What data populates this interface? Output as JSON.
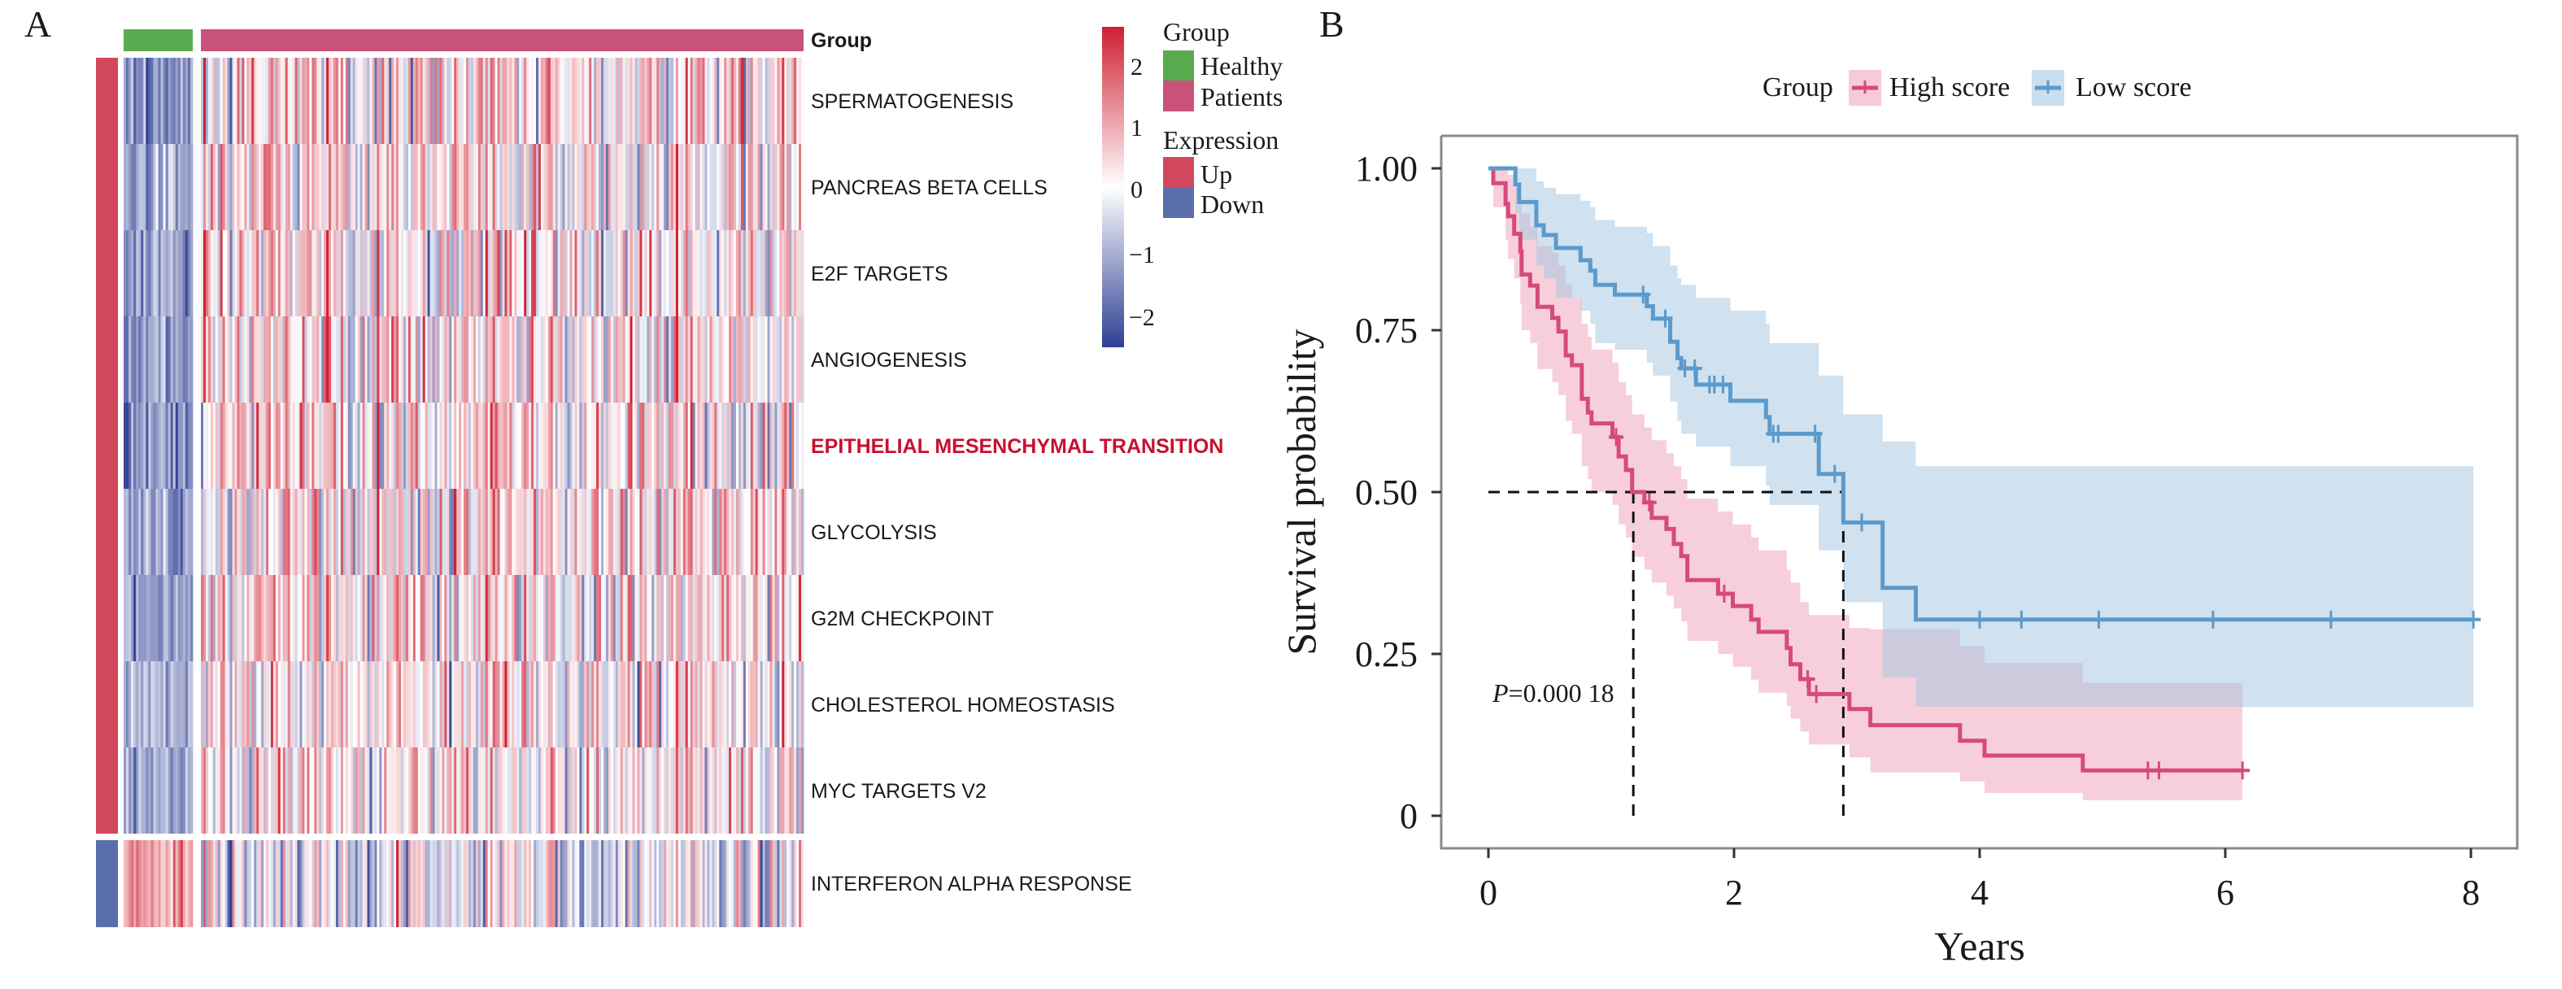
{
  "panels": {
    "a_letter": "A",
    "b_letter": "B"
  },
  "colors": {
    "healthy": "#5aaa4f",
    "patients": "#c9527a",
    "up": "#d2485c",
    "down": "#5a6eae",
    "heat_high": "#cf1f32",
    "heat_mid": "#ffffff",
    "heat_low": "#2e3f94",
    "high_line": "#d64a7a",
    "high_fill": "#f0a8bc",
    "low_line": "#5b9acb",
    "low_fill": "#a9c8e2",
    "row_highlight": "#c8102e"
  },
  "heatmap": {
    "group_annotation_label": "Group",
    "legend": {
      "group_title": "Group",
      "group_items": [
        "Healthy",
        "Patients"
      ],
      "expression_title": "Expression",
      "expression_items": [
        "Up",
        "Down"
      ]
    },
    "colorbar": {
      "ticks": [
        "2",
        "1",
        "0",
        "−1",
        "−2"
      ],
      "tick_values": [
        2,
        1,
        0,
        -1,
        -2
      ],
      "range": [
        -2.5,
        2.6
      ]
    }
  },
  "chart_data": [
    {
      "type": "heatmap",
      "title": "",
      "column_groups": [
        {
          "name": "Healthy",
          "n_columns": 28
        },
        {
          "name": "Patients",
          "n_columns": 250
        }
      ],
      "rows": [
        {
          "label": "SPERMATOGENESIS",
          "expression": "Up",
          "highlight": false,
          "healthy_mean": -1.4,
          "patients_mean": 0.35
        },
        {
          "label": "PANCREAS BETA CELLS",
          "expression": "Up",
          "highlight": false,
          "healthy_mean": -1.1,
          "patients_mean": 0.2
        },
        {
          "label": "E2F TARGETS",
          "expression": "Up",
          "highlight": false,
          "healthy_mean": -1.2,
          "patients_mean": 0.3
        },
        {
          "label": "ANGIOGENESIS",
          "expression": "Up",
          "highlight": false,
          "healthy_mean": -1.3,
          "patients_mean": 0.3
        },
        {
          "label": "EPITHELIAL MESENCHYMAL TRANSITION",
          "expression": "Up",
          "highlight": true,
          "healthy_mean": -1.4,
          "patients_mean": 0.35
        },
        {
          "label": "GLYCOLYSIS",
          "expression": "Up",
          "highlight": false,
          "healthy_mean": -1.2,
          "patients_mean": 0.3
        },
        {
          "label": "G2M CHECKPOINT",
          "expression": "Up",
          "highlight": false,
          "healthy_mean": -1.1,
          "patients_mean": 0.3
        },
        {
          "label": "CHOLESTEROL HOMEOSTASIS",
          "expression": "Up",
          "highlight": false,
          "healthy_mean": -1.0,
          "patients_mean": 0.25
        },
        {
          "label": "MYC TARGETS V2",
          "expression": "Up",
          "highlight": false,
          "healthy_mean": -1.0,
          "patients_mean": 0.2
        }
      ],
      "separate_rows": [
        {
          "label": "INTERFERON ALPHA RESPONSE",
          "expression": "Down",
          "highlight": false,
          "healthy_mean": 1.2,
          "patients_mean": -0.25
        }
      ],
      "color_scale": {
        "min": -2.5,
        "max": 2.6,
        "center": 0
      }
    },
    {
      "type": "line",
      "subtype": "kaplan-meier",
      "title": "",
      "xlabel": "Years",
      "ylabel": "Survival probability",
      "xlim": [
        -0.3,
        8.4
      ],
      "ylim": [
        -0.05,
        1.05
      ],
      "xticks": [
        0,
        2,
        4,
        6,
        8
      ],
      "xtick_labels": [
        "0",
        "2",
        "4",
        "6",
        "8"
      ],
      "yticks": [
        0,
        0.25,
        0.5,
        0.75,
        1.0
      ],
      "ytick_labels": [
        "0",
        "0.25",
        "0.50",
        "0.75",
        "1.00"
      ],
      "grid": false,
      "legend": {
        "title": "Group",
        "placement": "top",
        "entries": [
          "High score",
          "Low score"
        ]
      },
      "annotation": {
        "p_italic": "P",
        "p_rest": "=0.000 18",
        "x": 0.0,
        "y": 0.16
      },
      "median_lines": {
        "y": 0.5,
        "x_values": [
          1.18,
          2.89
        ]
      },
      "series": [
        {
          "name": "High score",
          "end_time": 6.14,
          "time": [
            0,
            0.04,
            0.14,
            0.16,
            0.21,
            0.26,
            0.27,
            0.34,
            0.4,
            0.52,
            0.57,
            0.63,
            0.68,
            0.76,
            0.81,
            0.84,
            1.01,
            1.06,
            1.12,
            1.17,
            1.27,
            1.33,
            1.45,
            1.51,
            1.57,
            1.62,
            1.87,
            1.99,
            2.14,
            2.2,
            2.43,
            2.46,
            2.54,
            2.61,
            2.94,
            3.11,
            3.84,
            4.04,
            4.84
          ],
          "surv": [
            1.0,
            0.977,
            0.945,
            0.926,
            0.899,
            0.872,
            0.836,
            0.819,
            0.786,
            0.769,
            0.748,
            0.711,
            0.696,
            0.644,
            0.623,
            0.606,
            0.585,
            0.555,
            0.534,
            0.5,
            0.484,
            0.46,
            0.443,
            0.42,
            0.401,
            0.364,
            0.343,
            0.324,
            0.303,
            0.284,
            0.259,
            0.234,
            0.211,
            0.188,
            0.165,
            0.14,
            0.116,
            0.093,
            0.07
          ],
          "lower": [
            1.0,
            0.94,
            0.89,
            0.86,
            0.83,
            0.79,
            0.75,
            0.73,
            0.69,
            0.67,
            0.65,
            0.61,
            0.59,
            0.54,
            0.52,
            0.5,
            0.48,
            0.45,
            0.43,
            0.4,
            0.38,
            0.36,
            0.34,
            0.32,
            0.3,
            0.27,
            0.25,
            0.23,
            0.21,
            0.19,
            0.17,
            0.15,
            0.13,
            0.11,
            0.09,
            0.067,
            0.053,
            0.035,
            0.024
          ],
          "upper": [
            1.0,
            1.0,
            1.0,
            0.99,
            0.97,
            0.95,
            0.93,
            0.91,
            0.88,
            0.87,
            0.85,
            0.82,
            0.8,
            0.76,
            0.74,
            0.72,
            0.7,
            0.67,
            0.65,
            0.62,
            0.6,
            0.58,
            0.56,
            0.54,
            0.52,
            0.49,
            0.47,
            0.45,
            0.43,
            0.41,
            0.38,
            0.36,
            0.33,
            0.31,
            0.29,
            0.288,
            0.262,
            0.236,
            0.205
          ],
          "censored": [
            1.04,
            1.31,
            1.92,
            2.6,
            2.67,
            5.37,
            5.46,
            6.14
          ]
        },
        {
          "name": "Low score",
          "end_time": 8.02,
          "time": [
            0,
            0.22,
            0.25,
            0.39,
            0.45,
            0.55,
            0.75,
            0.83,
            0.87,
            1.03,
            1.29,
            1.34,
            1.48,
            1.54,
            1.57,
            1.69,
            1.97,
            2.26,
            2.29,
            2.69,
            2.89,
            3.21,
            3.48
          ],
          "surv": [
            1.0,
            0.975,
            0.948,
            0.912,
            0.897,
            0.877,
            0.858,
            0.842,
            0.82,
            0.805,
            0.787,
            0.768,
            0.732,
            0.707,
            0.691,
            0.666,
            0.641,
            0.616,
            0.59,
            0.528,
            0.453,
            0.352,
            0.303
          ],
          "lower": [
            1.0,
            0.93,
            0.89,
            0.85,
            0.83,
            0.8,
            0.78,
            0.76,
            0.73,
            0.72,
            0.7,
            0.68,
            0.64,
            0.61,
            0.59,
            0.57,
            0.54,
            0.51,
            0.48,
            0.41,
            0.33,
            0.214,
            0.168
          ],
          "upper": [
            1.0,
            1.0,
            1.0,
            0.98,
            0.97,
            0.96,
            0.95,
            0.94,
            0.92,
            0.91,
            0.9,
            0.88,
            0.85,
            0.83,
            0.82,
            0.8,
            0.78,
            0.76,
            0.73,
            0.68,
            0.62,
            0.578,
            0.54
          ],
          "censored": [
            1.26,
            1.44,
            1.6,
            1.68,
            1.8,
            1.84,
            1.91,
            2.32,
            2.36,
            2.66,
            2.82,
            3.04,
            4.0,
            4.34,
            4.97,
            5.9,
            6.86,
            8.02
          ]
        }
      ]
    }
  ]
}
